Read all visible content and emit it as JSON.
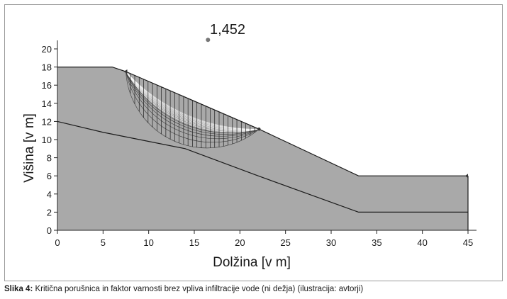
{
  "figure": {
    "fos_label": "1,452",
    "caption_prefix": "Slika 4:",
    "caption_text": " Kritična porušnica in faktor varnosti brez vpliva infiltracije vode (ni dežja) (ilustracija: avtorji)"
  },
  "chart_data": {
    "type": "area",
    "title": "",
    "xlabel": "Dolžina [v m]",
    "ylabel": "Višina [v m]",
    "xlim": [
      0,
      45
    ],
    "ylim": [
      0,
      20
    ],
    "xticks": [
      0,
      5,
      10,
      15,
      20,
      25,
      30,
      35,
      40,
      45
    ],
    "yticks": [
      0,
      2,
      4,
      6,
      8,
      10,
      12,
      14,
      16,
      18,
      20
    ],
    "grid": false,
    "colors": {
      "slope": "#a9a9a9",
      "surface_line": "#1a1a1a",
      "slip_lines": "#ffffff"
    },
    "series": [
      {
        "name": "",
        "x": [
          0,
          6,
          7.5,
          22,
          33,
          45
        ],
        "y": [
          18,
          18,
          17.5,
          11.2,
          6,
          6
        ]
      },
      {
        "name": "",
        "x": [
          0,
          5,
          14,
          22,
          33,
          45
        ],
        "y": [
          12,
          10.8,
          9,
          6,
          2,
          2
        ]
      }
    ],
    "critical_surface": {
      "x_entry": 7.5,
      "x_exit": 22.1,
      "center": [
        16.5,
        21
      ],
      "factor_of_safety": 1.452
    }
  }
}
